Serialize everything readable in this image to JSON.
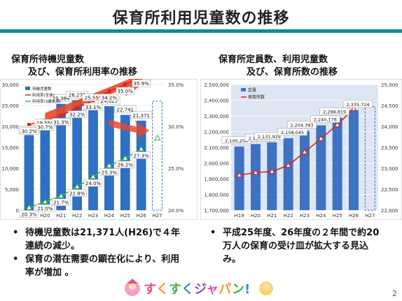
{
  "title": "保育所利用児童数の推移",
  "left": {
    "subtitle_line1": "保育所待機児童数",
    "subtitle_line2": "及び、保育所利用率の推移",
    "legend": [
      "待機児童数",
      "利用率(全体)",
      "利用率(3歳未満)"
    ],
    "bullets": [
      "待機児童数は21,371人(H26)で４年連続の減少。",
      "保育の潜在需要の顕在化により、利用率が増加 。"
    ]
  },
  "right": {
    "subtitle_line1": "保育所定員数、利用児童数",
    "subtitle_line2": "及び、保育所数の推移",
    "legend": [
      "定員",
      "保育所数"
    ],
    "bullets": [
      "平成25年度、26年度の２年間で約20万人の保育の受け皿が拡大する見込み。"
    ]
  },
  "logo_text": "すくすくジャパン!",
  "page_number": "2",
  "chart_data": [
    {
      "type": "bar",
      "categories": [
        "H19",
        "H20",
        "H21",
        "H22",
        "H23",
        "H24",
        "H25",
        "H26",
        "H27"
      ],
      "ylim": [
        0,
        30000
      ],
      "y2lim": [
        20.0,
        35.0
      ],
      "yticks": [
        "0",
        "5,000",
        "10,000",
        "15,000",
        "20,000",
        "25,000",
        "30,000"
      ],
      "y2ticks": [
        "20.0%",
        "25.0%",
        "30.0%",
        "35.0%"
      ],
      "series": [
        {
          "name": "待機児童数",
          "kind": "bar",
          "values": [
            17926,
            19550,
            25384,
            26275,
            25556,
            24825,
            22741,
            21371,
            null
          ],
          "labels": [
            "17,926",
            "19,550",
            "25,384",
            "26,275",
            "25,556",
            "24,825",
            "22,741",
            "21,371",
            ""
          ],
          "color": "#2f6fc4"
        },
        {
          "name": "利用率(全体)",
          "kind": "line",
          "axis": "y2",
          "values": [
            30.2,
            30.7,
            31.3,
            32.2,
            33.1,
            34.2,
            35.0,
            35.9,
            null
          ],
          "labels": [
            "30.2%",
            "30.7%",
            "31.3%",
            "32.2%",
            "33.1%",
            "34.2%",
            "35.0%",
            "35.9%",
            ""
          ],
          "color": "#e0201b"
        },
        {
          "name": "利用率(3歳未満)",
          "kind": "line",
          "axis": "y2",
          "values": [
            20.3,
            21.0,
            21.7,
            22.8,
            24.0,
            25.3,
            26.2,
            27.3,
            null
          ],
          "labels": [
            "20.3%",
            "21.0%",
            "21.7%",
            "22.8%",
            "24.0%",
            "25.3%",
            "26.2%",
            "27.3%",
            ""
          ],
          "color": "#3ab54a"
        }
      ]
    },
    {
      "type": "bar",
      "categories": [
        "H19",
        "H20",
        "H21",
        "H22",
        "H23",
        "H24",
        "H25",
        "H26",
        "H27"
      ],
      "ylim": [
        1700000,
        2500000
      ],
      "y2lim": [
        22000,
        25000
      ],
      "yticks": [
        "1,700,000",
        "1,800,000",
        "1,900,000",
        "2,000,000",
        "2,100,000",
        "2,200,000",
        "2,300,000",
        "2,400,000",
        "2,500,000"
      ],
      "y2ticks": [
        "22,000",
        "22,500",
        "23,000",
        "23,500",
        "24,000",
        "24,500",
        "25,000"
      ],
      "series": [
        {
          "name": "定員",
          "kind": "bar",
          "values": [
            2105254,
            2120889,
            2131929,
            2158045,
            2204393,
            2240178,
            2288819,
            2335724,
            null
          ],
          "labels": [
            "2,105,254",
            "2,120,889",
            "2,131,929",
            "2,158,045",
            "2,204,393",
            "2,240,178",
            "2,288,819",
            "2,335,724",
            ""
          ],
          "color": "#3f72c2"
        },
        {
          "name": "保育所数",
          "kind": "line",
          "axis": "y2",
          "values": [
            22838,
            22898,
            22925,
            23068,
            23385,
            23711,
            24038,
            24425,
            null
          ],
          "color": "#e0201b"
        }
      ]
    }
  ]
}
